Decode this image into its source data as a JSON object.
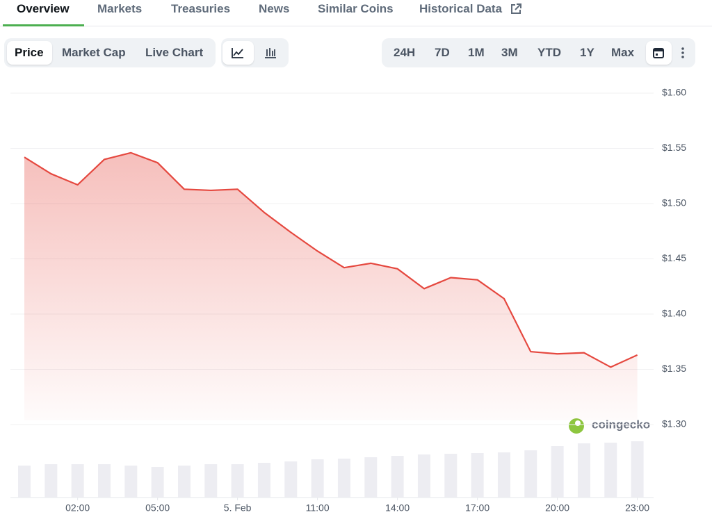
{
  "tabs": [
    "Overview",
    "Markets",
    "Treasuries",
    "News",
    "Similar Coins",
    "Historical Data"
  ],
  "chart_tabs": [
    "Price",
    "Market Cap",
    "Live Chart"
  ],
  "ranges": [
    "24H",
    "7D",
    "1M",
    "3M",
    "YTD",
    "1Y",
    "Max"
  ],
  "chart_data": {
    "type": "line",
    "x": [
      0,
      1,
      2,
      3,
      4,
      5,
      6,
      7,
      8,
      9,
      10,
      11,
      12,
      13,
      14,
      15,
      16,
      17,
      18,
      19,
      20,
      21,
      22,
      23
    ],
    "series": [
      {
        "color": "#e5483f",
        "values": [
          1.542,
          1.527,
          1.517,
          1.54,
          1.546,
          1.537,
          1.513,
          1.512,
          1.513,
          1.492,
          1.474,
          1.457,
          1.442,
          1.446,
          1.441,
          1.423,
          1.433,
          1.431,
          1.414,
          1.366,
          1.364,
          1.365,
          1.352,
          1.363
        ]
      }
    ],
    "volume": {
      "color": "#ededf2",
      "values": [
        46,
        48,
        48,
        48,
        46,
        44,
        46,
        48,
        48,
        50,
        52,
        55,
        56,
        58,
        60,
        62,
        63,
        64,
        65,
        68,
        74,
        78,
        79,
        81
      ]
    },
    "xlim": [
      -0.5,
      23.5
    ],
    "xticks": [
      {
        "value": 2,
        "label": "02:00"
      },
      {
        "value": 5,
        "label": "05:00"
      },
      {
        "value": 8,
        "label": "5. Feb"
      },
      {
        "value": 11,
        "label": "11:00"
      },
      {
        "value": 14,
        "label": "14:00"
      },
      {
        "value": 17,
        "label": "17:00"
      },
      {
        "value": 20,
        "label": "20:00"
      },
      {
        "value": 23,
        "label": "23:00"
      }
    ],
    "ylim": [
      1.3,
      1.6
    ],
    "yticks": [
      {
        "value": 1.3,
        "label": "$1.30"
      },
      {
        "value": 1.35,
        "label": "$1.35"
      },
      {
        "value": 1.4,
        "label": "$1.40"
      },
      {
        "value": 1.45,
        "label": "$1.45"
      },
      {
        "value": 1.5,
        "label": "$1.50"
      },
      {
        "value": 1.55,
        "label": "$1.55"
      },
      {
        "value": 1.6,
        "label": "$1.60"
      }
    ],
    "grid": true,
    "watermark": "coingecko"
  }
}
